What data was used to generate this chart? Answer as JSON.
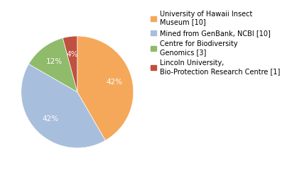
{
  "legend_labels": [
    "University of Hawaii Insect\nMuseum [10]",
    "Mined from GenBank, NCBI [10]",
    "Centre for Biodiversity\nGenomics [3]",
    "Lincoln University,\nBio-Protection Research Centre [1]"
  ],
  "values": [
    10,
    10,
    3,
    1
  ],
  "colors": [
    "#f5a85a",
    "#a8bedd",
    "#8fbb6a",
    "#c05040"
  ],
  "startangle": 90,
  "background_color": "#ffffff",
  "autopct_fontsize": 7.5,
  "legend_fontsize": 7.0,
  "pct_color": "white"
}
